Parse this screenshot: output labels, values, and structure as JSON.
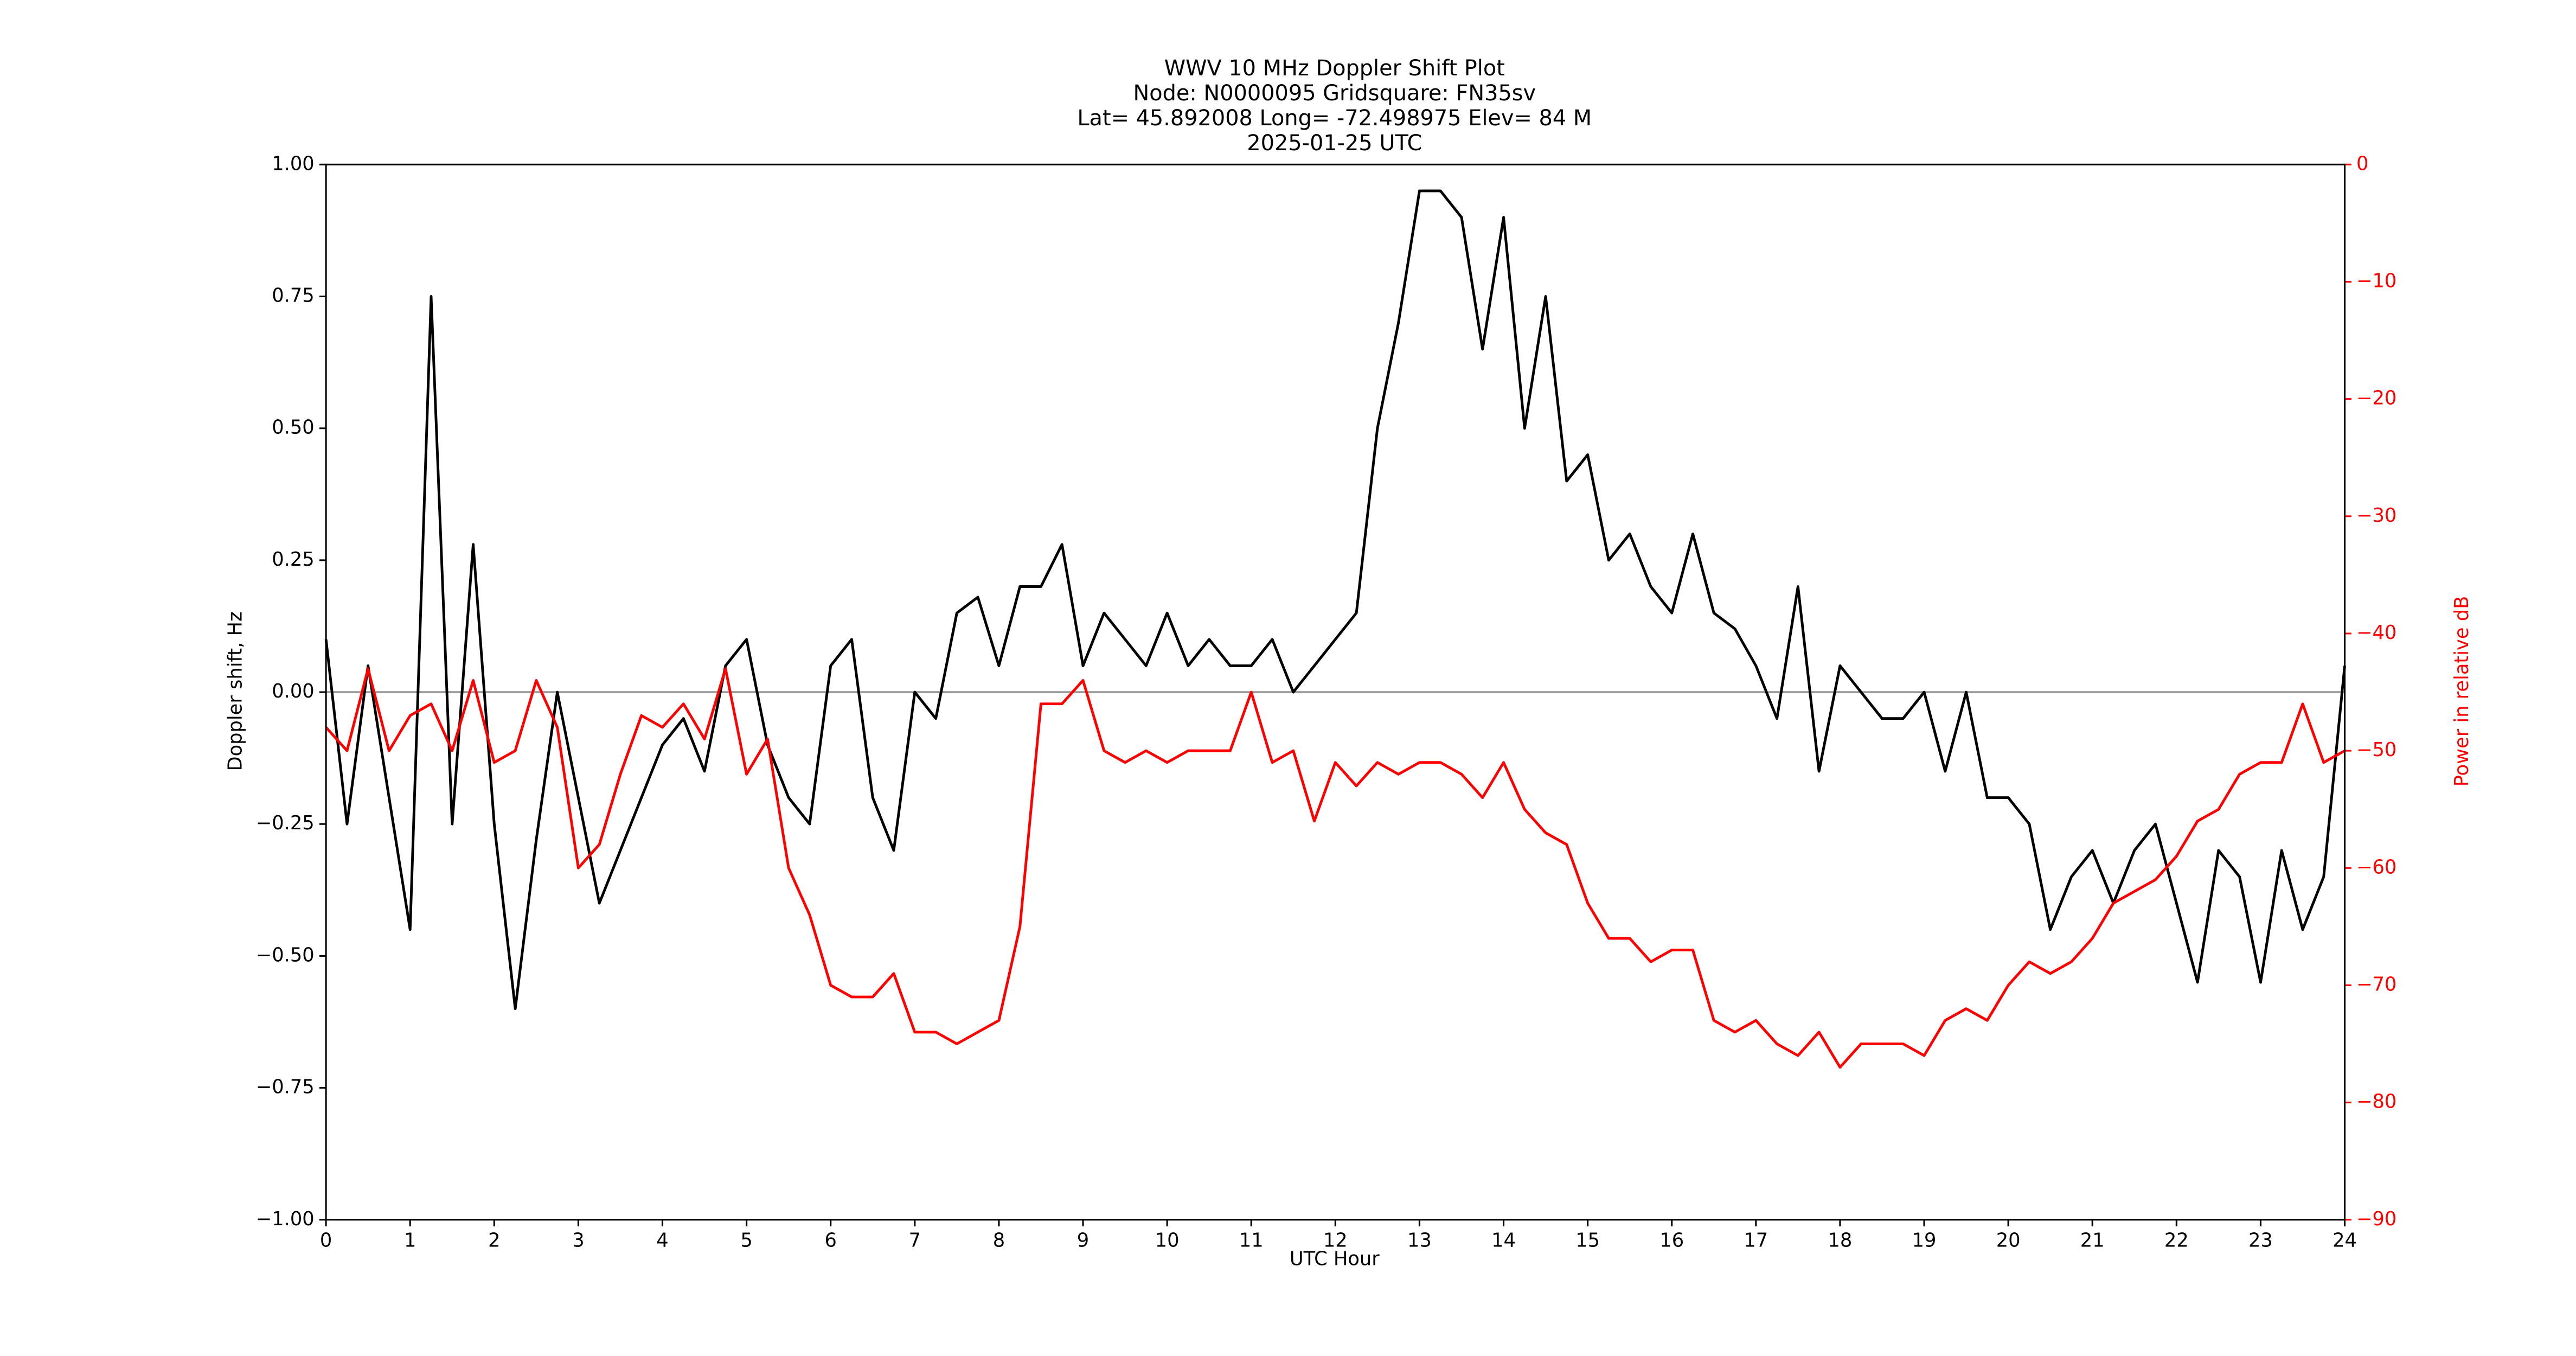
{
  "chart_data": {
    "type": "line",
    "title": [
      "WWV 10 MHz Doppler Shift Plot",
      "Node:  N0000095     Gridsquare:  FN35sv",
      "Lat= 45.892008    Long= -72.498975    Elev= 84 M",
      "2025-01-25  UTC"
    ],
    "xlabel": "UTC Hour",
    "ylabel": "Doppler shift, Hz",
    "y2label": "Power in relative dB",
    "x": [
      0,
      0.25,
      0.5,
      0.75,
      1,
      1.25,
      1.5,
      1.75,
      2,
      2.25,
      2.5,
      2.75,
      3,
      3.25,
      3.5,
      3.75,
      4,
      4.25,
      4.5,
      4.75,
      5,
      5.25,
      5.5,
      5.75,
      6,
      6.25,
      6.5,
      6.75,
      7,
      7.25,
      7.5,
      7.75,
      8,
      8.25,
      8.5,
      8.75,
      9,
      9.25,
      9.5,
      9.75,
      10,
      10.25,
      10.5,
      10.75,
      11,
      11.25,
      11.5,
      11.75,
      12,
      12.25,
      12.5,
      12.75,
      13,
      13.25,
      13.5,
      13.75,
      14,
      14.25,
      14.5,
      14.75,
      15,
      15.25,
      15.5,
      15.75,
      16,
      16.25,
      16.5,
      16.75,
      17,
      17.25,
      17.5,
      17.75,
      18,
      18.25,
      18.5,
      18.75,
      19,
      19.25,
      19.5,
      19.75,
      20,
      20.25,
      20.5,
      20.75,
      21,
      21.25,
      21.5,
      21.75,
      22,
      22.25,
      22.5,
      22.75,
      23,
      23.25,
      23.5,
      23.75,
      24
    ],
    "series": [
      {
        "name": "Doppler shift",
        "color": "#000000",
        "axis": "y",
        "values": [
          0.1,
          -0.25,
          0.05,
          -0.2,
          -0.45,
          0.75,
          -0.25,
          0.28,
          -0.25,
          -0.6,
          -0.28,
          0.0,
          -0.2,
          -0.4,
          -0.3,
          -0.2,
          -0.1,
          -0.05,
          -0.15,
          0.05,
          0.1,
          -0.1,
          -0.2,
          -0.25,
          0.05,
          0.1,
          -0.2,
          -0.3,
          0.0,
          -0.05,
          0.15,
          0.18,
          0.05,
          0.2,
          0.2,
          0.28,
          0.05,
          0.15,
          0.1,
          0.05,
          0.15,
          0.05,
          0.1,
          0.05,
          0.05,
          0.1,
          0.0,
          0.05,
          0.1,
          0.15,
          0.5,
          0.7,
          0.95,
          0.95,
          0.9,
          0.65,
          0.9,
          0.5,
          0.75,
          0.4,
          0.45,
          0.25,
          0.3,
          0.2,
          0.15,
          0.3,
          0.15,
          0.12,
          0.05,
          -0.05,
          0.2,
          -0.15,
          0.05,
          0.0,
          -0.05,
          -0.05,
          0.0,
          -0.15,
          0.0,
          -0.2,
          -0.2,
          -0.25,
          -0.45,
          -0.35,
          -0.3,
          -0.4,
          -0.3,
          -0.25,
          -0.4,
          -0.55,
          -0.3,
          -0.35,
          -0.55,
          -0.3,
          -0.45,
          -0.35,
          0.05
        ]
      },
      {
        "name": "Power",
        "color": "#ff0000",
        "axis": "y2",
        "values": [
          -48,
          -50,
          -43,
          -50,
          -47,
          -46,
          -50,
          -44,
          -51,
          -50,
          -44,
          -48,
          -60,
          -58,
          -52,
          -47,
          -48,
          -46,
          -49,
          -43,
          -52,
          -49,
          -60,
          -64,
          -70,
          -71,
          -71,
          -69,
          -74,
          -74,
          -75,
          -74,
          -73,
          -65,
          -46,
          -46,
          -44,
          -50,
          -51,
          -50,
          -51,
          -50,
          -50,
          -50,
          -45,
          -51,
          -50,
          -56,
          -51,
          -53,
          -51,
          -52,
          -51,
          -51,
          -52,
          -54,
          -51,
          -55,
          -57,
          -58,
          -63,
          -66,
          -66,
          -68,
          -67,
          -67,
          -73,
          -74,
          -73,
          -75,
          -76,
          -74,
          -77,
          -75,
          -75,
          -75,
          -76,
          -73,
          -72,
          -73,
          -70,
          -68,
          -69,
          -68,
          -66,
          -63,
          -62,
          -61,
          -59,
          -56,
          -55,
          -52,
          -51,
          -51,
          -46,
          -51,
          -50
        ]
      }
    ],
    "xlim": [
      0,
      24
    ],
    "xticks": [
      0,
      1,
      2,
      3,
      4,
      5,
      6,
      7,
      8,
      9,
      10,
      11,
      12,
      13,
      14,
      15,
      16,
      17,
      18,
      19,
      20,
      21,
      22,
      23,
      24
    ],
    "ylim": [
      -1,
      1
    ],
    "yticks": [
      {
        "value": -1,
        "label": "−1.00"
      },
      {
        "value": -0.75,
        "label": "−0.75"
      },
      {
        "value": -0.5,
        "label": "−0.50"
      },
      {
        "value": -0.25,
        "label": "−0.25"
      },
      {
        "value": 0,
        "label": "0.00"
      },
      {
        "value": 0.25,
        "label": "0.25"
      },
      {
        "value": 0.5,
        "label": "0.50"
      },
      {
        "value": 0.75,
        "label": "0.75"
      },
      {
        "value": 1,
        "label": "1.00"
      }
    ],
    "y2lim": [
      -90,
      0
    ],
    "y2ticks": [
      {
        "value": -90,
        "label": "−90"
      },
      {
        "value": -80,
        "label": "−80"
      },
      {
        "value": -70,
        "label": "−70"
      },
      {
        "value": -60,
        "label": "−60"
      },
      {
        "value": -50,
        "label": "−50"
      },
      {
        "value": -40,
        "label": "−40"
      },
      {
        "value": -30,
        "label": "−30"
      },
      {
        "value": -20,
        "label": "−20"
      },
      {
        "value": -10,
        "label": "−10"
      },
      0
    ],
    "y2color": "#ff0000",
    "reference_line": 0,
    "grid": false
  }
}
